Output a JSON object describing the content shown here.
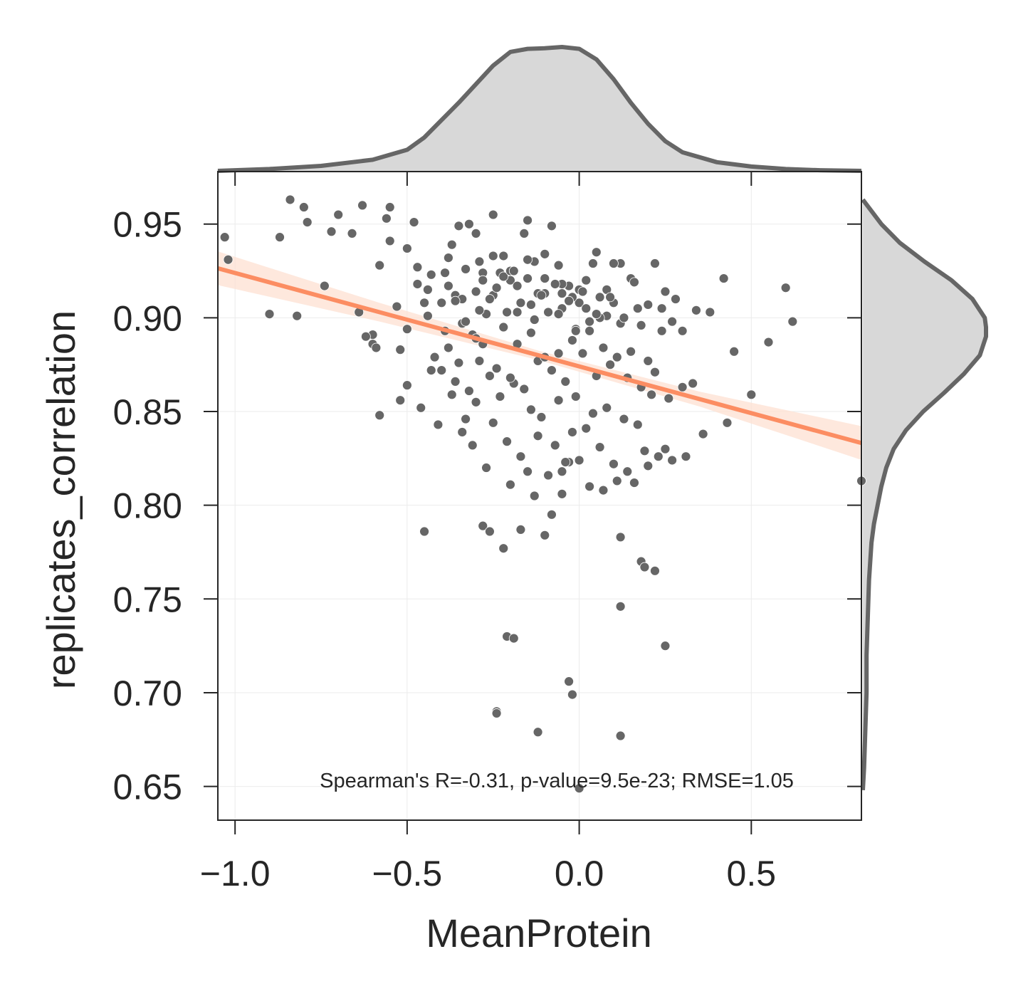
{
  "chart_data": {
    "type": "scatter",
    "title": "",
    "xlabel": "MeanProtein",
    "ylabel": "replicates_correlation",
    "xlim": [
      -1.05,
      0.82
    ],
    "ylim": [
      0.632,
      0.978
    ],
    "xticks": [
      {
        "value": -1.0,
        "label": "−1.0"
      },
      {
        "value": -0.5,
        "label": "−0.5"
      },
      {
        "value": 0.0,
        "label": "0.0"
      },
      {
        "value": 0.5,
        "label": "0.5"
      }
    ],
    "yticks": [
      {
        "value": 0.65,
        "label": "0.65"
      },
      {
        "value": 0.7,
        "label": "0.70"
      },
      {
        "value": 0.75,
        "label": "0.75"
      },
      {
        "value": 0.8,
        "label": "0.80"
      },
      {
        "value": 0.85,
        "label": "0.85"
      },
      {
        "value": 0.9,
        "label": "0.90"
      },
      {
        "value": 0.95,
        "label": "0.95"
      }
    ],
    "grid": true,
    "annotation": "Spearman's R=-0.31, p-value=9.5e-23; RMSE=1.05",
    "colors": {
      "points": "#666666",
      "point_edge": "#ffffff",
      "regression": "#fc8d62",
      "ci_band": "#fde0d2",
      "marginal_fill": "#d8d8d8",
      "marginal_line": "#666666",
      "axes": "#262626",
      "grid": "#ebebeb"
    },
    "regression": {
      "x": [
        -1.05,
        0.82
      ],
      "y": [
        0.9264,
        0.8332
      ],
      "ci_halfwidth": [
        0.009,
        0.005,
        0.0025,
        0.004,
        0.009
      ]
    },
    "marginal_x": {
      "x": [
        -1.05,
        -0.9,
        -0.75,
        -0.6,
        -0.5,
        -0.45,
        -0.4,
        -0.35,
        -0.3,
        -0.25,
        -0.2,
        -0.15,
        -0.1,
        -0.05,
        0.0,
        0.05,
        0.1,
        0.15,
        0.2,
        0.25,
        0.3,
        0.4,
        0.5,
        0.6,
        0.7,
        0.82
      ],
      "density": [
        0.0,
        0.015,
        0.04,
        0.09,
        0.17,
        0.27,
        0.41,
        0.55,
        0.7,
        0.85,
        0.96,
        0.985,
        0.99,
        1.0,
        0.985,
        0.9,
        0.74,
        0.55,
        0.38,
        0.24,
        0.15,
        0.07,
        0.035,
        0.015,
        0.005,
        0.0
      ]
    },
    "marginal_y": {
      "y": [
        0.648,
        0.66,
        0.68,
        0.7,
        0.72,
        0.74,
        0.76,
        0.78,
        0.79,
        0.8,
        0.81,
        0.82,
        0.83,
        0.84,
        0.85,
        0.86,
        0.87,
        0.88,
        0.89,
        0.895,
        0.9,
        0.91,
        0.92,
        0.93,
        0.94,
        0.95,
        0.963
      ],
      "density": [
        0.0,
        0.01,
        0.02,
        0.03,
        0.03,
        0.04,
        0.05,
        0.07,
        0.09,
        0.12,
        0.15,
        0.19,
        0.25,
        0.35,
        0.49,
        0.66,
        0.82,
        0.95,
        1.0,
        1.0,
        0.99,
        0.89,
        0.72,
        0.5,
        0.3,
        0.15,
        0.0
      ]
    },
    "points_x": [
      -1.03,
      -1.02,
      -0.9,
      -0.87,
      -0.82,
      -0.84,
      -0.8,
      -0.79,
      -0.74,
      -0.72,
      -0.7,
      -0.66,
      -0.64,
      -0.63,
      -0.6,
      -0.6,
      -0.58,
      -0.56,
      -0.55,
      -0.53,
      -0.52,
      -0.5,
      -0.48,
      -0.47,
      -0.45,
      -0.44,
      -0.4,
      -0.39,
      -0.38,
      -0.37,
      -0.36,
      -0.35,
      -0.34,
      -0.32,
      -0.3,
      -0.29,
      -0.28,
      -0.26,
      -0.25,
      -0.23,
      -0.22,
      -0.2,
      -0.18,
      -0.16,
      -0.15,
      -0.13,
      -0.12,
      -0.1,
      -0.08,
      -0.06,
      -0.05,
      -0.03,
      -0.01,
      0.0,
      0.02,
      0.04,
      0.06,
      0.08,
      0.1,
      0.12,
      0.15,
      0.17,
      0.2,
      0.22,
      0.25,
      0.28,
      0.3,
      0.34,
      0.38,
      0.42,
      0.45,
      0.5,
      0.55,
      0.6,
      0.62,
      0.82,
      -0.45,
      -0.28,
      -0.26,
      -0.22,
      -0.21,
      -0.19,
      -0.17,
      -0.13,
      -0.1,
      -0.08,
      -0.05,
      -0.03,
      -0.02,
      0.12,
      0.18,
      0.19,
      0.22,
      0.25,
      0.12,
      0.0,
      -0.24,
      -0.24,
      -0.12,
      -0.05,
      -0.03,
      0.12,
      -0.52,
      -0.58,
      -0.46,
      -0.41,
      -0.34,
      -0.31,
      -0.27,
      -0.2,
      -0.15,
      -0.09,
      -0.04,
      0.0,
      0.03,
      0.07,
      0.11,
      0.16,
      0.2,
      0.25,
      0.31,
      0.36,
      0.43,
      -0.62,
      -0.59,
      -0.5,
      -0.43,
      -0.37,
      -0.33,
      -0.3,
      -0.25,
      -0.21,
      -0.17,
      -0.12,
      -0.07,
      -0.02,
      0.02,
      0.06,
      0.1,
      0.14,
      0.19,
      0.23,
      0.27,
      0.33,
      -0.4,
      -0.36,
      -0.32,
      -0.29,
      -0.26,
      -0.23,
      -0.19,
      -0.14,
      -0.11,
      -0.06,
      -0.01,
      0.04,
      0.08,
      0.13,
      0.17,
      0.21,
      0.26,
      0.3,
      -0.42,
      -0.38,
      -0.35,
      -0.31,
      -0.28,
      -0.24,
      -0.2,
      -0.16,
      -0.12,
      -0.08,
      -0.04,
      0.01,
      0.05,
      0.09,
      0.14,
      0.18,
      0.22,
      0.27,
      -0.44,
      -0.39,
      -0.34,
      -0.3,
      -0.27,
      -0.22,
      -0.18,
      -0.14,
      -0.1,
      -0.06,
      -0.02,
      0.03,
      0.07,
      0.11,
      0.15,
      0.2,
      0.24,
      -0.36,
      -0.33,
      -0.29,
      -0.25,
      -0.21,
      -0.17,
      -0.13,
      -0.09,
      -0.05,
      -0.01,
      0.03,
      0.08,
      0.12,
      0.16,
      -0.3,
      -0.26,
      -0.22,
      -0.18,
      -0.14,
      -0.1,
      -0.06,
      -0.02,
      0.02,
      0.06,
      0.1,
      -0.25,
      -0.2,
      -0.15,
      -0.1,
      -0.05,
      0.0,
      0.05,
      -0.55,
      -0.5,
      -0.47,
      -0.43,
      -0.38,
      -0.33,
      -0.28,
      -0.24,
      -0.19,
      -0.15,
      -0.11,
      -0.07,
      -0.03,
      0.01,
      0.05,
      0.09,
      0.13,
      0.18,
      0.24,
      0.29,
      0.35,
      0.4
    ],
    "points_y": [
      0.943,
      0.931,
      0.902,
      0.943,
      0.901,
      0.963,
      0.959,
      0.951,
      0.917,
      0.946,
      0.955,
      0.945,
      0.903,
      0.96,
      0.886,
      0.891,
      0.928,
      0.953,
      0.959,
      0.906,
      0.883,
      0.894,
      0.951,
      0.918,
      0.908,
      0.915,
      0.908,
      0.924,
      0.917,
      0.939,
      0.912,
      0.949,
      0.91,
      0.95,
      0.945,
      0.93,
      0.924,
      0.91,
      0.955,
      0.924,
      0.933,
      0.92,
      0.903,
      0.945,
      0.952,
      0.93,
      0.913,
      0.934,
      0.949,
      0.928,
      0.913,
      0.917,
      0.894,
      0.908,
      0.92,
      0.929,
      0.911,
      0.915,
      0.908,
      0.929,
      0.921,
      0.905,
      0.907,
      0.929,
      0.914,
      0.91,
      0.893,
      0.904,
      0.903,
      0.921,
      0.882,
      0.859,
      0.887,
      0.916,
      0.898,
      0.813,
      0.786,
      0.789,
      0.786,
      0.777,
      0.73,
      0.729,
      0.787,
      0.805,
      0.784,
      0.795,
      0.806,
      0.706,
      0.699,
      0.783,
      0.77,
      0.767,
      0.765,
      0.725,
      0.746,
      0.649,
      0.69,
      0.689,
      0.679,
      0.818,
      0.823,
      0.677,
      0.856,
      0.848,
      0.852,
      0.843,
      0.839,
      0.832,
      0.82,
      0.811,
      0.818,
      0.816,
      0.823,
      0.824,
      0.81,
      0.808,
      0.813,
      0.812,
      0.821,
      0.83,
      0.826,
      0.838,
      0.844,
      0.89,
      0.884,
      0.864,
      0.872,
      0.859,
      0.846,
      0.855,
      0.844,
      0.834,
      0.826,
      0.837,
      0.832,
      0.839,
      0.841,
      0.831,
      0.822,
      0.818,
      0.829,
      0.826,
      0.824,
      0.865,
      0.872,
      0.866,
      0.861,
      0.877,
      0.869,
      0.858,
      0.865,
      0.851,
      0.847,
      0.856,
      0.858,
      0.849,
      0.852,
      0.846,
      0.843,
      0.859,
      0.857,
      0.863,
      0.879,
      0.884,
      0.876,
      0.891,
      0.886,
      0.873,
      0.868,
      0.862,
      0.877,
      0.872,
      0.866,
      0.881,
      0.869,
      0.875,
      0.868,
      0.863,
      0.871,
      0.898,
      0.901,
      0.893,
      0.897,
      0.889,
      0.902,
      0.895,
      0.886,
      0.892,
      0.879,
      0.881,
      0.888,
      0.893,
      0.884,
      0.879,
      0.882,
      0.877,
      0.905,
      0.909,
      0.898,
      0.904,
      0.912,
      0.903,
      0.908,
      0.899,
      0.903,
      0.905,
      0.893,
      0.898,
      0.901,
      0.897,
      0.919,
      0.914,
      0.91,
      0.922,
      0.917,
      0.907,
      0.913,
      0.902,
      0.911,
      0.905,
      0.9,
      0.929,
      0.933,
      0.925,
      0.931,
      0.921,
      0.918,
      0.915,
      0.935,
      0.941,
      0.937,
      0.927,
      0.923,
      0.932,
      0.926,
      0.92,
      0.916,
      0.925,
      0.921,
      0.912,
      0.918,
      0.909,
      0.914,
      0.902,
      0.911,
      0.9,
      0.896,
      0.893
    ]
  }
}
